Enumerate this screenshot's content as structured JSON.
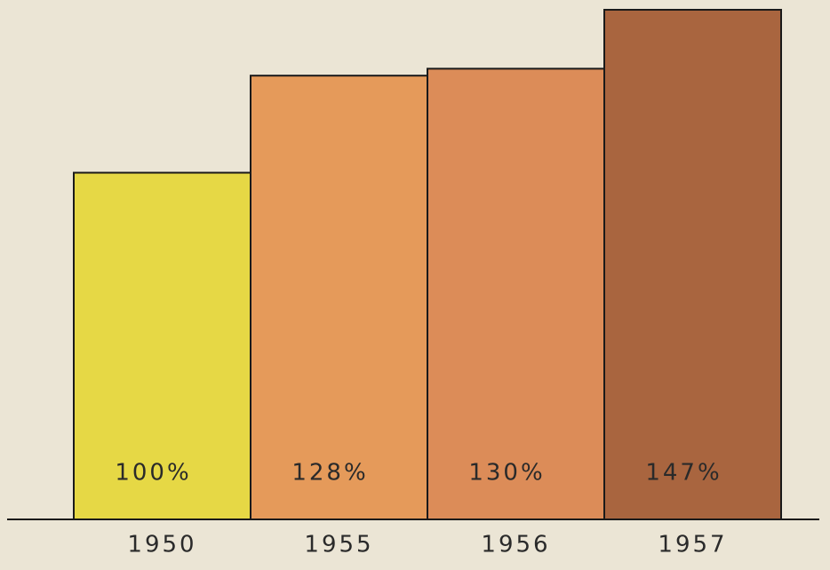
{
  "chart_data": {
    "type": "bar",
    "categories": [
      "1950",
      "1955",
      "1956",
      "1957"
    ],
    "values": [
      100,
      128,
      130,
      147
    ],
    "value_labels": [
      "100%",
      "128%",
      "130%",
      "147%"
    ],
    "colors": [
      "#e6d845",
      "#e59a5a",
      "#dc8c58",
      "#a9653f"
    ]
  }
}
